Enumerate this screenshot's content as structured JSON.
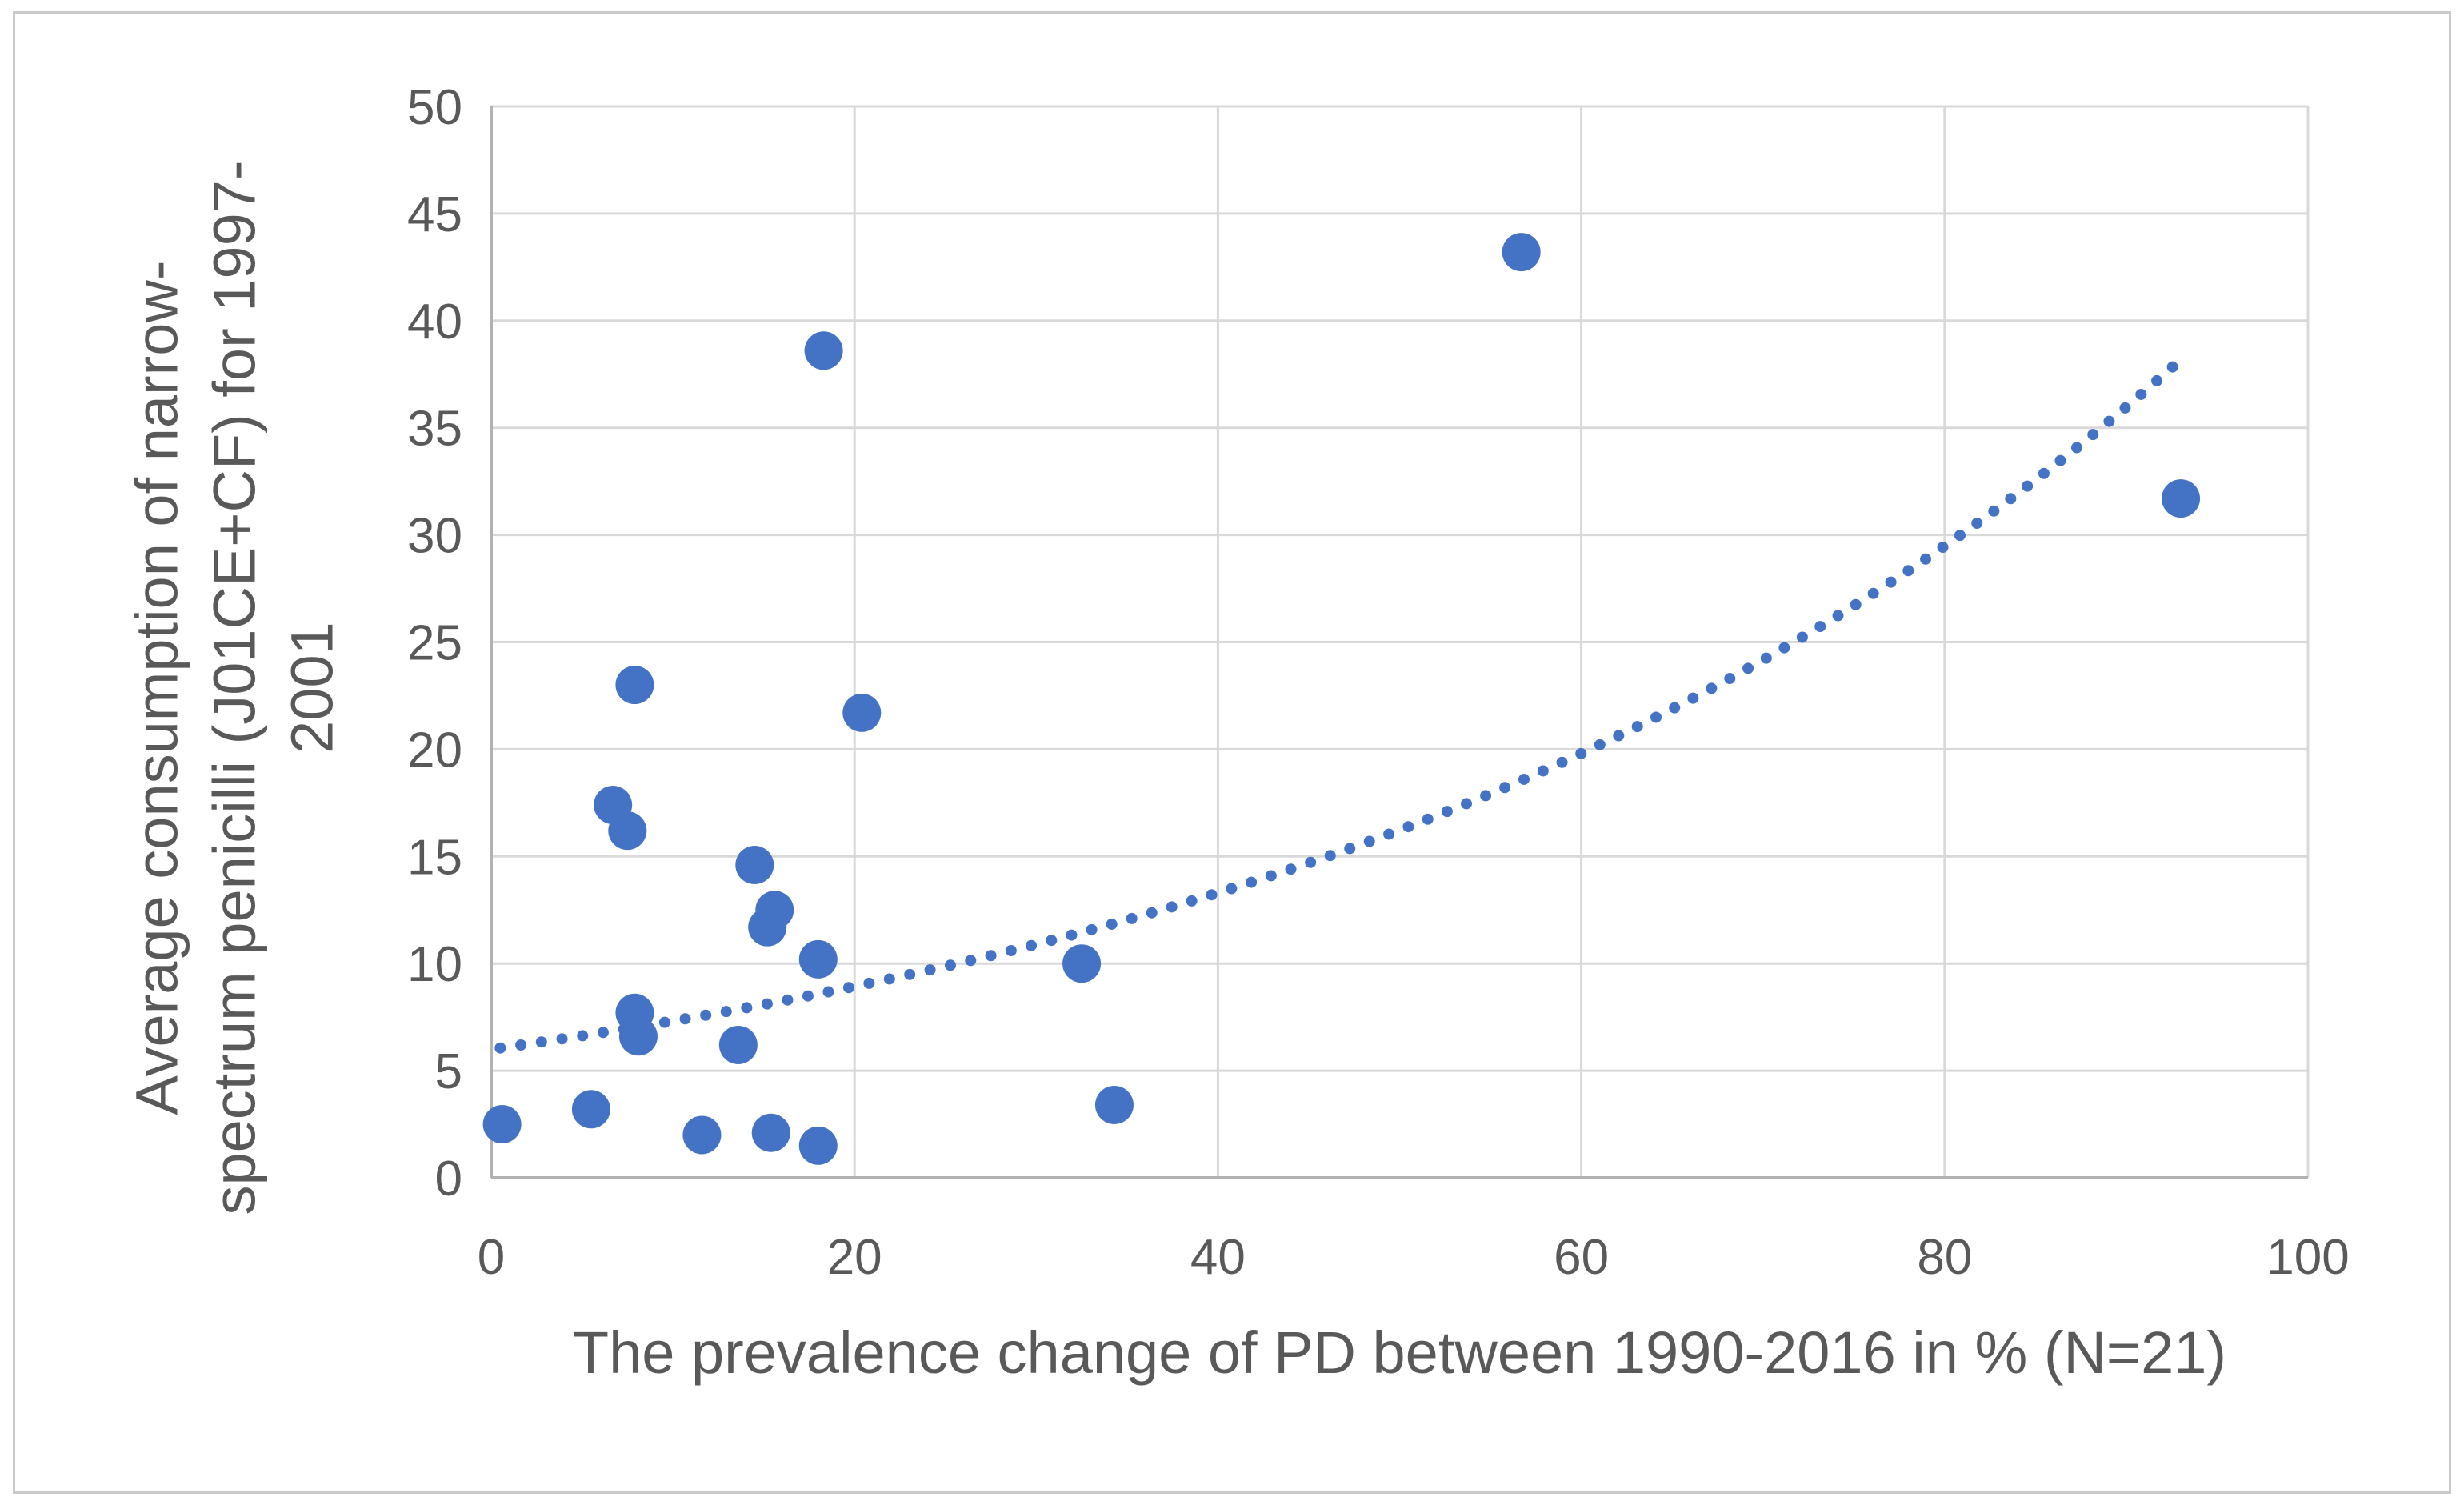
{
  "colors": {
    "marker": "#4472C4",
    "trendline": "#4472C4",
    "gridline": "#D9D9D9",
    "axis_line": "#B2B2B2",
    "text": "#595959",
    "border": "#C9C9C9",
    "background": "#FFFFFF"
  },
  "chart_data": {
    "type": "scatter",
    "title": "",
    "xlabel": "The prevalence change of PD between 1990-2016 in % (N=21)",
    "ylabel": "Average consumption of narrow-spectrum penicilli (J01CE+CF) for 1997-2001",
    "ylabel_lines": [
      "Average consumption of narrow-",
      "spectrum penicilli (J01CE+CF) for 1997-",
      "2001"
    ],
    "xlim": [
      0,
      100
    ],
    "ylim": [
      0,
      50
    ],
    "x_ticks": [
      0,
      20,
      40,
      60,
      80,
      100
    ],
    "y_ticks": [
      0,
      5,
      10,
      15,
      20,
      25,
      30,
      35,
      40,
      45,
      50
    ],
    "grid": true,
    "legend": "none",
    "marker_shape": "circle",
    "points": [
      [
        0.6,
        2.5
      ],
      [
        5.5,
        3.2
      ],
      [
        6.7,
        17.4
      ],
      [
        7.5,
        16.2
      ],
      [
        7.9,
        23.0
      ],
      [
        7.9,
        7.7
      ],
      [
        8.1,
        6.6
      ],
      [
        11.6,
        2.0
      ],
      [
        13.6,
        6.2
      ],
      [
        14.5,
        14.6
      ],
      [
        15.2,
        11.7
      ],
      [
        15.4,
        2.1
      ],
      [
        15.6,
        12.5
      ],
      [
        18.0,
        1.5
      ],
      [
        18.0,
        10.2
      ],
      [
        18.3,
        38.6
      ],
      [
        20.4,
        21.7
      ],
      [
        32.5,
        10.0
      ],
      [
        34.3,
        3.4
      ],
      [
        56.7,
        43.2
      ],
      [
        93.0,
        31.7
      ]
    ],
    "trendline": {
      "type": "exponential",
      "formula": "y = 6.0*e^(0.0199x)",
      "a": 6.0,
      "b": 0.0199,
      "x_start": 0.5,
      "x_end": 93.0,
      "style": "dotted"
    }
  }
}
